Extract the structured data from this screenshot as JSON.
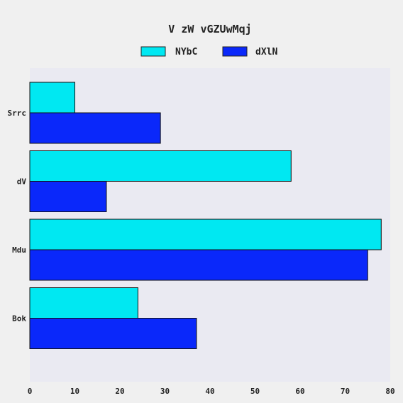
{
  "chart_data": {
    "type": "bar",
    "orientation": "horizontal",
    "title": "V zW  vGZUwMqj",
    "xlabel": "",
    "ylabel": "",
    "categories": [
      "Srrc",
      "dV",
      "Mdu",
      "Bok"
    ],
    "series": [
      {
        "name": "NYbC",
        "values": [
          10,
          58,
          78,
          24
        ],
        "color": "#00e8f2"
      },
      {
        "name": "dXlN",
        "values": [
          29,
          17,
          75,
          37
        ],
        "color": "#0a28fa"
      }
    ],
    "xlim": [
      0,
      80
    ],
    "xticks": [
      0,
      10,
      20,
      30,
      40,
      50,
      60,
      70,
      80
    ],
    "grid": false,
    "legend_position": "top",
    "plot_background": "#eaeaf2"
  }
}
